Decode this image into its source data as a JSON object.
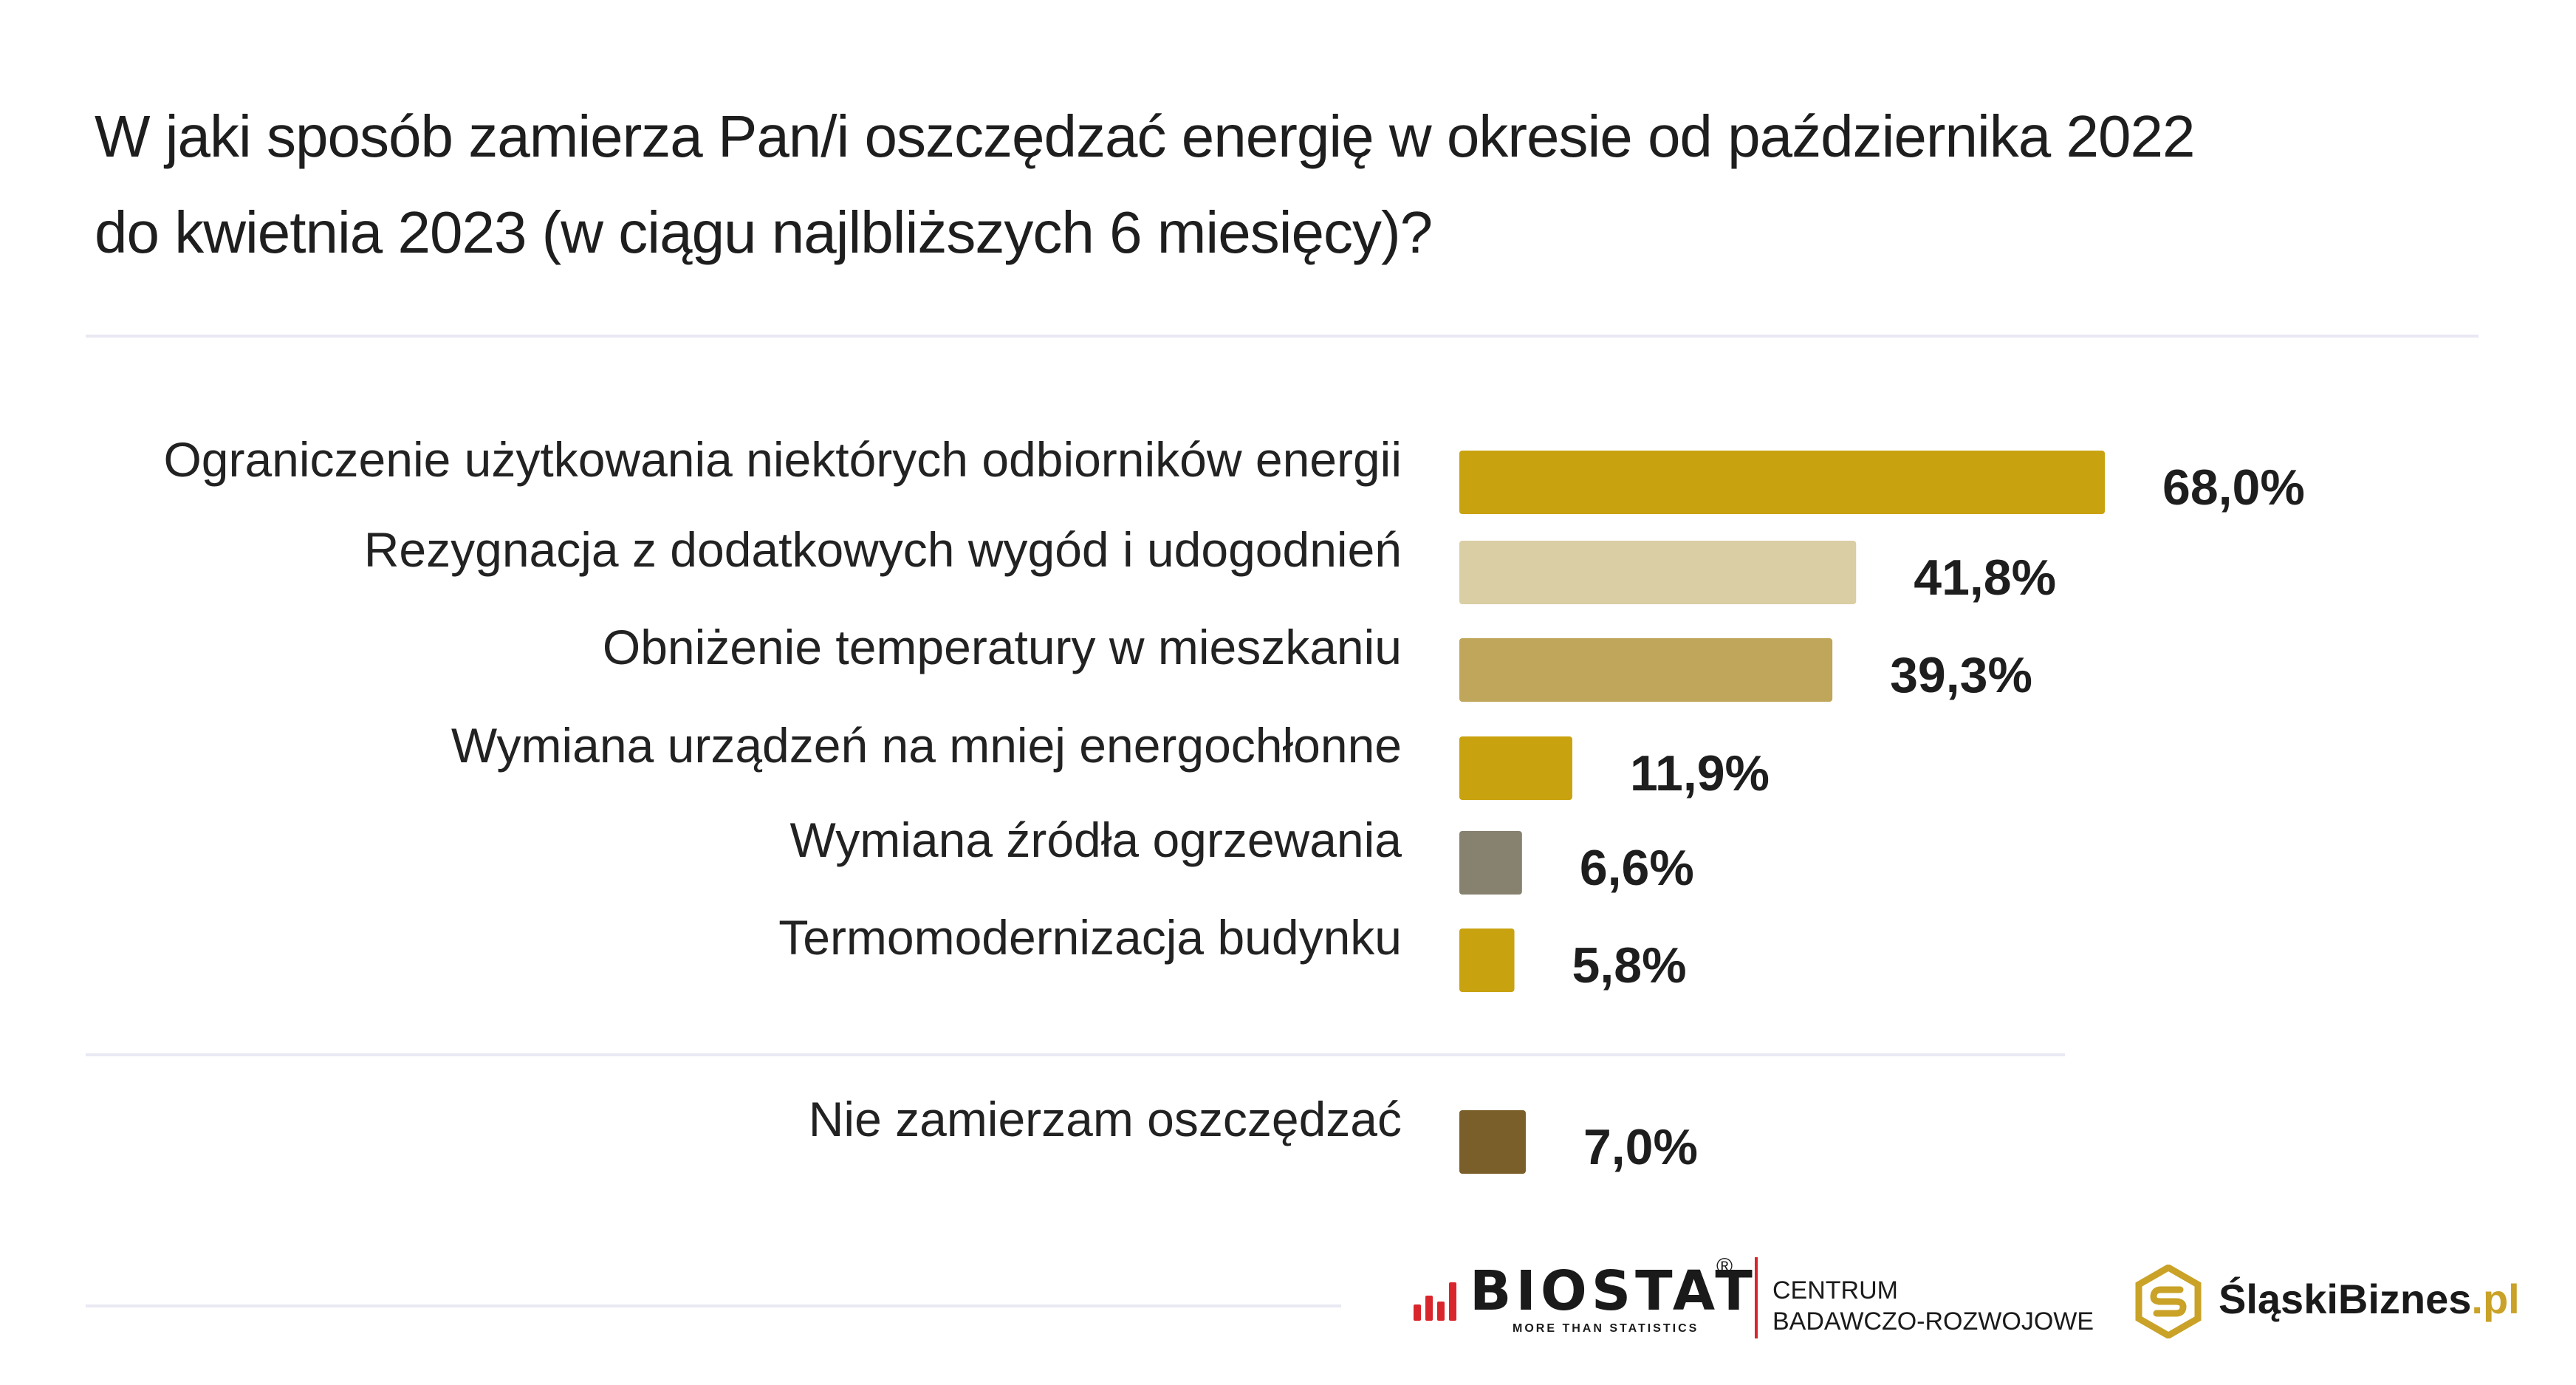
{
  "title": {
    "line1": "W jaki sposób zamierza Pan/i oszczędzać energię w okresie od października 2022",
    "line2": "do kwietnia 2023 (w ciągu najlbliższych 6 miesięcy)?"
  },
  "chart_data": {
    "type": "bar",
    "orientation": "horizontal",
    "title": "W jaki sposób zamierza Pan/i oszczędzać energię w okresie od października 2022 do kwietnia 2023 (w ciągu najlbliższych 6 miesięcy)?",
    "xlim": [
      0,
      68
    ],
    "grid": false,
    "categories": [
      "Ograniczenie użytkowania niektórych odbiorników energii",
      "Rezygnacja z dodatkowych wygód i udogodnień",
      "Obniżenie temperatury w mieszkaniu",
      "Wymiana urządzeń na mniej energochłonne",
      "Wymiana źródła ogrzewania",
      "Termomodernizacja budynku",
      "Nie zamierzam oszczędzać"
    ],
    "values": [
      68.0,
      41.8,
      39.3,
      11.9,
      6.6,
      5.8,
      7.0
    ],
    "value_labels": [
      "68,0%",
      "41,8%",
      "39,3%",
      "11,9%",
      "6,6%",
      "5,8%",
      "7,0%"
    ],
    "colors": [
      "#c9a20f",
      "#d9cea4",
      "#bfa65a",
      "#c9a20f",
      "#878170",
      "#c9a20f",
      "#7a5f2a"
    ]
  },
  "footer": {
    "biostat_name": "BIOSTAT",
    "biostat_reg": "®",
    "biostat_tagline": "MORE THAN STATISTICS",
    "biostat_center_line1": "CENTRUM",
    "biostat_center_line2": "BADAWCZO-ROZWOJOWE",
    "slaski_name": "ŚląskiBiznes",
    "slaski_domain": ".pl"
  },
  "colors": {
    "accent_gold": "#c9a20f",
    "brand_red": "#d9262c",
    "divider": "#e8e9f2"
  }
}
